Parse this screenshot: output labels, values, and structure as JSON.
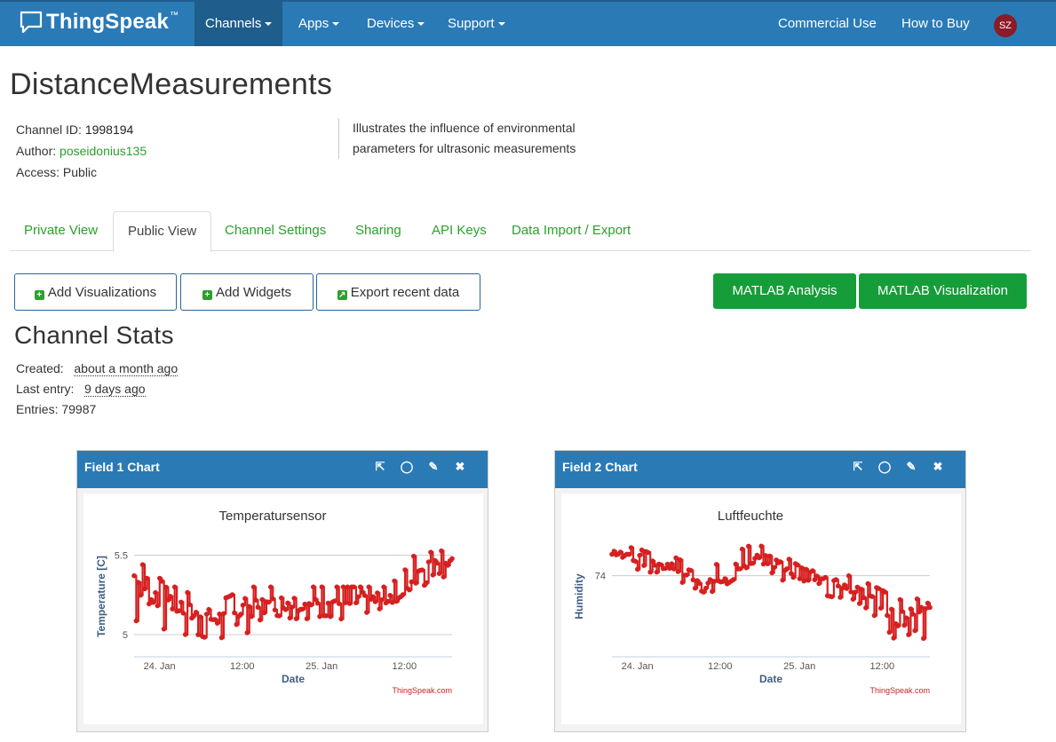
{
  "brand": {
    "name": "ThingSpeak",
    "tm": "™",
    "icon": "chat-bubble-logo-icon"
  },
  "nav": {
    "items": [
      {
        "label": "Channels",
        "dropdown": true,
        "active": true
      },
      {
        "label": "Apps",
        "dropdown": true
      },
      {
        "label": "Devices",
        "dropdown": true
      },
      {
        "label": "Support",
        "dropdown": true
      }
    ],
    "right": [
      {
        "label": "Commercial Use"
      },
      {
        "label": "How to Buy"
      }
    ],
    "avatar": "SZ"
  },
  "channel": {
    "title": "DistanceMeasurements",
    "id_label": "Channel ID:",
    "id": "1998194",
    "author_label": "Author:",
    "author": "poseidonius135",
    "access_label": "Access:",
    "access": "Public",
    "description": "Illustrates the influence of environmental parameters for ultrasonic measurements"
  },
  "tabs": [
    {
      "label": "Private View"
    },
    {
      "label": "Public View",
      "active": true
    },
    {
      "label": "Channel Settings"
    },
    {
      "label": "Sharing"
    },
    {
      "label": "API Keys"
    },
    {
      "label": "Data Import / Export"
    }
  ],
  "actions": {
    "add_visualizations": "Add Visualizations",
    "add_widgets": "Add Widgets",
    "export_recent": "Export recent data",
    "matlab_analysis": "MATLAB Analysis",
    "matlab_visualization": "MATLAB Visualization"
  },
  "stats": {
    "title": "Channel Stats",
    "created_label": "Created:",
    "created": "about a month ago",
    "last_entry_label": "Last entry:",
    "last_entry": "9 days ago",
    "entries_label": "Entries:",
    "entries": "79987"
  },
  "colors": {
    "nav": "#2a7ab6",
    "accent_green": "#2ca02c",
    "series": "#d62020"
  },
  "chart_data": [
    {
      "panel_title": "Field 1 Chart",
      "type": "line",
      "title": "Temperatursensor",
      "xlabel": "Date",
      "ylabel": "Temperature [C]",
      "x_ticks": [
        "24. Jan",
        "12:00",
        "25. Jan",
        "12:00"
      ],
      "y_ticks": [
        5,
        5.5
      ],
      "ylim": [
        4.86,
        5.62
      ],
      "credit": "ThingSpeak.com",
      "series": [
        {
          "x": [
            0,
            0.05,
            0.1,
            0.15,
            0.2,
            0.25,
            0.3,
            0.35,
            0.4,
            0.45,
            0.5,
            0.55,
            0.6,
            0.65,
            0.7,
            0.75,
            0.8,
            0.85,
            0.9,
            0.95,
            1.0
          ],
          "values": [
            5.36,
            5.28,
            5.24,
            5.16,
            5.12,
            5.1,
            5.1,
            5.16,
            5.18,
            5.2,
            5.2,
            5.2,
            5.22,
            5.2,
            5.2,
            5.2,
            5.24,
            5.28,
            5.42,
            5.5,
            5.46
          ],
          "min": [
            5.1,
            5.0,
            5.04,
            5.0,
            5.0,
            4.96,
            5.0,
            5.0,
            5.1,
            5.12,
            5.1,
            5.1,
            5.12,
            5.1,
            5.04,
            5.0,
            5.12,
            5.14,
            5.28,
            5.4,
            5.32
          ],
          "max": [
            5.44,
            5.44,
            5.3,
            5.3,
            5.2,
            5.2,
            5.24,
            5.3,
            5.3,
            5.3,
            5.3,
            5.3,
            5.3,
            5.3,
            5.3,
            5.3,
            5.3,
            5.4,
            5.56,
            5.6,
            5.6
          ]
        }
      ]
    },
    {
      "panel_title": "Field 2 Chart",
      "type": "line",
      "title": "Luftfeuchte",
      "xlabel": "Date",
      "ylabel": "Humidity",
      "x_ticks": [
        "24. Jan",
        "12:00",
        "25. Jan",
        "12:00"
      ],
      "y_ticks": [
        74
      ],
      "ylim": [
        69.5,
        76.2
      ],
      "credit": "ThingSpeak.com",
      "series": [
        {
          "x": [
            0,
            0.05,
            0.1,
            0.15,
            0.2,
            0.25,
            0.3,
            0.35,
            0.4,
            0.45,
            0.5,
            0.55,
            0.6,
            0.65,
            0.7,
            0.75,
            0.8,
            0.85,
            0.9,
            0.95,
            1.0
          ],
          "values": [
            75.2,
            75.1,
            74.8,
            74.6,
            74.4,
            74.0,
            73.6,
            74.0,
            74.6,
            75.0,
            74.8,
            74.4,
            74.0,
            73.8,
            73.6,
            73.4,
            73.0,
            72.6,
            71.6,
            72.0,
            72.8
          ],
          "min": [
            74.8,
            74.6,
            74.2,
            74.2,
            73.8,
            73.4,
            73.0,
            73.4,
            74.0,
            74.4,
            74.2,
            73.6,
            73.2,
            73.0,
            72.8,
            72.8,
            72.2,
            71.4,
            70.2,
            71.0,
            70.2
          ],
          "max": [
            75.6,
            75.6,
            75.4,
            75.0,
            75.0,
            74.6,
            74.4,
            74.8,
            75.4,
            75.8,
            75.4,
            75.0,
            74.4,
            74.2,
            74.0,
            74.0,
            73.6,
            73.2,
            72.6,
            73.2,
            74.0
          ]
        }
      ]
    }
  ]
}
